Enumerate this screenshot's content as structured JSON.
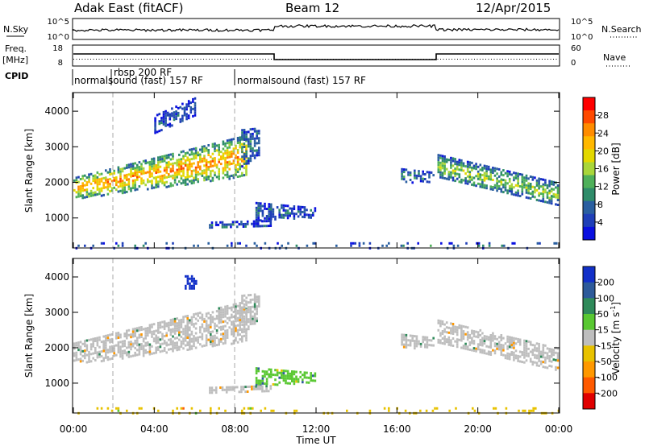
{
  "header": {
    "site": "Adak East (fitACF)",
    "beam": "Beam 12",
    "date": "12/Apr/2015"
  },
  "top_panels": {
    "nsky_label": "N.Sky",
    "nsky_ticks": [
      "10^5",
      "10^0"
    ],
    "nsearch_label": "N.Search",
    "nsearch_ticks": [
      "10^5",
      "10^0"
    ],
    "freq_label": "Freq.",
    "freq_unit": "[MHz]",
    "freq_ticks": [
      "18",
      "8"
    ],
    "nave_label": "Nave",
    "nave_ticks": [
      "60",
      "0"
    ],
    "cpid_label": "CPID",
    "cpid_segments": [
      {
        "start_hour": 0.0,
        "end_hour": 8.0,
        "label": "normalsound (fast) 157 RF"
      },
      {
        "start_hour": 1.9,
        "end_hour": 2.15,
        "label": "rbsp 200 RF"
      },
      {
        "start_hour": 8.0,
        "end_hour": 24.0,
        "label": "normalsound (fast) 157 RF"
      }
    ]
  },
  "colorbars": {
    "power": {
      "label": "Power [dB]",
      "ticks": [
        "28",
        "24",
        "20",
        "16",
        "12",
        "8",
        "4"
      ],
      "colors": [
        "#ff0000",
        "#ff4a00",
        "#ff8c00",
        "#ffb800",
        "#e3d800",
        "#a9d63a",
        "#4fb05a",
        "#2f8c6a",
        "#2a5fa0",
        "#1f3fb8",
        "#0a10e0"
      ]
    },
    "velocity": {
      "label": "Velocity [m s",
      "label_sup": "-1",
      "label_end": "]",
      "ticks": [
        "200",
        "100",
        "50",
        "15",
        "-15",
        "-50",
        "-100",
        "-200"
      ],
      "colors": [
        "#1230c8",
        "#2d5a9a",
        "#2f8a5a",
        "#59c832",
        "#bebebe",
        "#e8c200",
        "#ff9800",
        "#ff5a00",
        "#e00000"
      ]
    }
  },
  "chart_data": [
    {
      "type": "heatmap",
      "title": "Power",
      "xlabel": "Time UT",
      "ylabel": "Slant Range [km]",
      "x_ticks": [
        "00:00",
        "04:00",
        "08:00",
        "12:00",
        "16:00",
        "20:00",
        "00:00"
      ],
      "y_ticks": [
        "1000",
        "2000",
        "3000",
        "4000"
      ],
      "xlim_hours": [
        0,
        24
      ],
      "ylim_km": [
        180,
        4500
      ],
      "colorbar": "Power [dB]",
      "regions": [
        {
          "t0": 0.0,
          "t1": 8.6,
          "r_lo_start": 1550,
          "r_hi_start": 2150,
          "r_lo_end": 2200,
          "r_hi_end": 3350,
          "value_db": 22
        },
        {
          "t0": 8.3,
          "t1": 9.2,
          "r_lo_start": 2400,
          "r_hi_start": 3500,
          "r_lo_end": 2800,
          "r_hi_end": 3550,
          "value_db": 8
        },
        {
          "t0": 9.0,
          "t1": 12.0,
          "r_lo_start": 950,
          "r_hi_start": 1450,
          "r_lo_end": 1050,
          "r_hi_end": 1300,
          "value_db": 6
        },
        {
          "t0": 6.7,
          "t1": 9.8,
          "r_lo_start": 700,
          "r_hi_start": 900,
          "r_lo_end": 750,
          "r_hi_end": 950,
          "value_db": 5
        },
        {
          "t0": 4.0,
          "t1": 6.0,
          "r_lo_start": 3400,
          "r_hi_start": 3900,
          "r_lo_end": 3900,
          "r_hi_end": 4400,
          "value_db": 5
        },
        {
          "t0": 16.2,
          "t1": 17.8,
          "r_lo_start": 2000,
          "r_hi_start": 2400,
          "r_lo_end": 2050,
          "r_hi_end": 2300,
          "value_db": 8
        },
        {
          "t0": 18.0,
          "t1": 24.0,
          "r_lo_start": 2150,
          "r_hi_start": 2800,
          "r_lo_end": 1350,
          "r_hi_end": 2000,
          "value_db": 14
        },
        {
          "t0": 0.0,
          "t1": 24.0,
          "r_lo_start": 180,
          "r_hi_start": 320,
          "r_lo_end": 180,
          "r_hi_end": 320,
          "value_db": 6
        }
      ]
    },
    {
      "type": "heatmap",
      "title": "Velocity",
      "xlabel": "Time UT",
      "ylabel": "Slant Range [km]",
      "x_ticks": [
        "00:00",
        "04:00",
        "08:00",
        "12:00",
        "16:00",
        "20:00",
        "00:00"
      ],
      "y_ticks": [
        "1000",
        "2000",
        "3000",
        "4000"
      ],
      "xlim_hours": [
        0,
        24
      ],
      "ylim_km": [
        180,
        4500
      ],
      "colorbar": "Velocity [m s-1]",
      "regions": [
        {
          "t0": 0.0,
          "t1": 8.6,
          "r_lo_start": 1550,
          "r_hi_start": 2150,
          "r_lo_end": 2200,
          "r_hi_end": 3350,
          "value_ms": 0
        },
        {
          "t0": 8.3,
          "t1": 9.2,
          "r_lo_start": 2400,
          "r_hi_start": 3500,
          "r_lo_end": 2800,
          "r_hi_end": 3550,
          "value_ms": 0
        },
        {
          "t0": 9.0,
          "t1": 12.0,
          "r_lo_start": 950,
          "r_hi_start": 1450,
          "r_lo_end": 1050,
          "r_hi_end": 1300,
          "value_ms": 40
        },
        {
          "t0": 6.7,
          "t1": 9.8,
          "r_lo_start": 700,
          "r_hi_start": 900,
          "r_lo_end": 750,
          "r_hi_end": 950,
          "value_ms": 0
        },
        {
          "t0": 5.5,
          "t1": 6.1,
          "r_lo_start": 3700,
          "r_hi_start": 4050,
          "r_lo_end": 3700,
          "r_hi_end": 4050,
          "value_ms": 220
        },
        {
          "t0": 16.2,
          "t1": 17.8,
          "r_lo_start": 2000,
          "r_hi_start": 2400,
          "r_lo_end": 2050,
          "r_hi_end": 2300,
          "value_ms": 0
        },
        {
          "t0": 18.0,
          "t1": 24.0,
          "r_lo_start": 2150,
          "r_hi_start": 2800,
          "r_lo_end": 1350,
          "r_hi_end": 2000,
          "value_ms": 0
        },
        {
          "t0": 0.0,
          "t1": 24.0,
          "r_lo_start": 180,
          "r_hi_start": 320,
          "r_lo_end": 180,
          "r_hi_end": 320,
          "value_ms": -30
        }
      ]
    }
  ]
}
